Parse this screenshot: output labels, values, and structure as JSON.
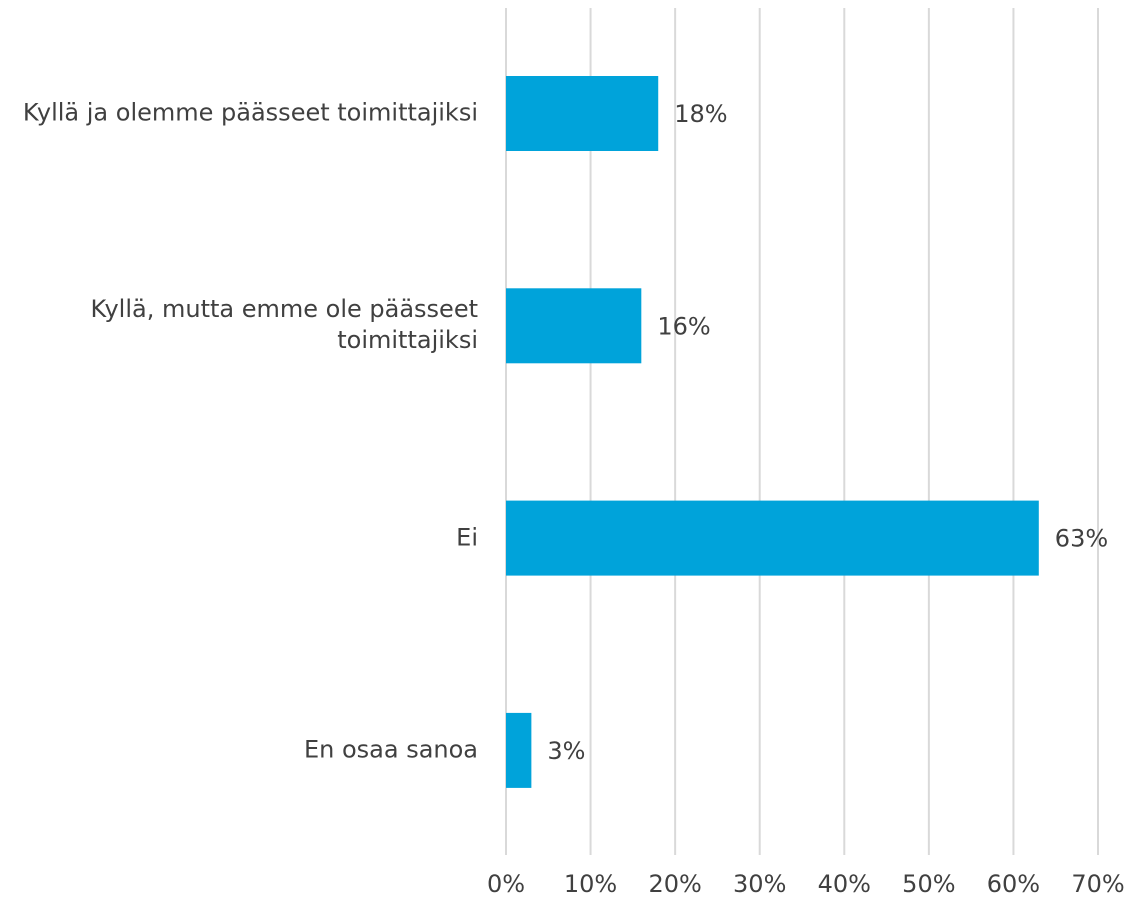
{
  "chart_data": {
    "type": "bar",
    "orientation": "horizontal",
    "categories": [
      "Kyllä ja olemme päässeet toimittajiksi",
      "Kyllä, mutta emme ole päässeet toimittajiksi",
      "Ei",
      "En osaa sanoa"
    ],
    "values": [
      18,
      16,
      63,
      3
    ],
    "value_labels": [
      "18%",
      "16%",
      "63%",
      "3%"
    ],
    "color": "#00a3da",
    "xlim": [
      0,
      70
    ],
    "xticks": [
      {
        "value": 0,
        "label": "0%"
      },
      {
        "value": 10,
        "label": "10%"
      },
      {
        "value": 20,
        "label": "20%"
      },
      {
        "value": 30,
        "label": "30%"
      },
      {
        "value": 40,
        "label": "40%"
      },
      {
        "value": 50,
        "label": "50%"
      },
      {
        "value": 60,
        "label": "60%"
      },
      {
        "value": 70,
        "label": "70%"
      }
    ],
    "grid": true
  }
}
